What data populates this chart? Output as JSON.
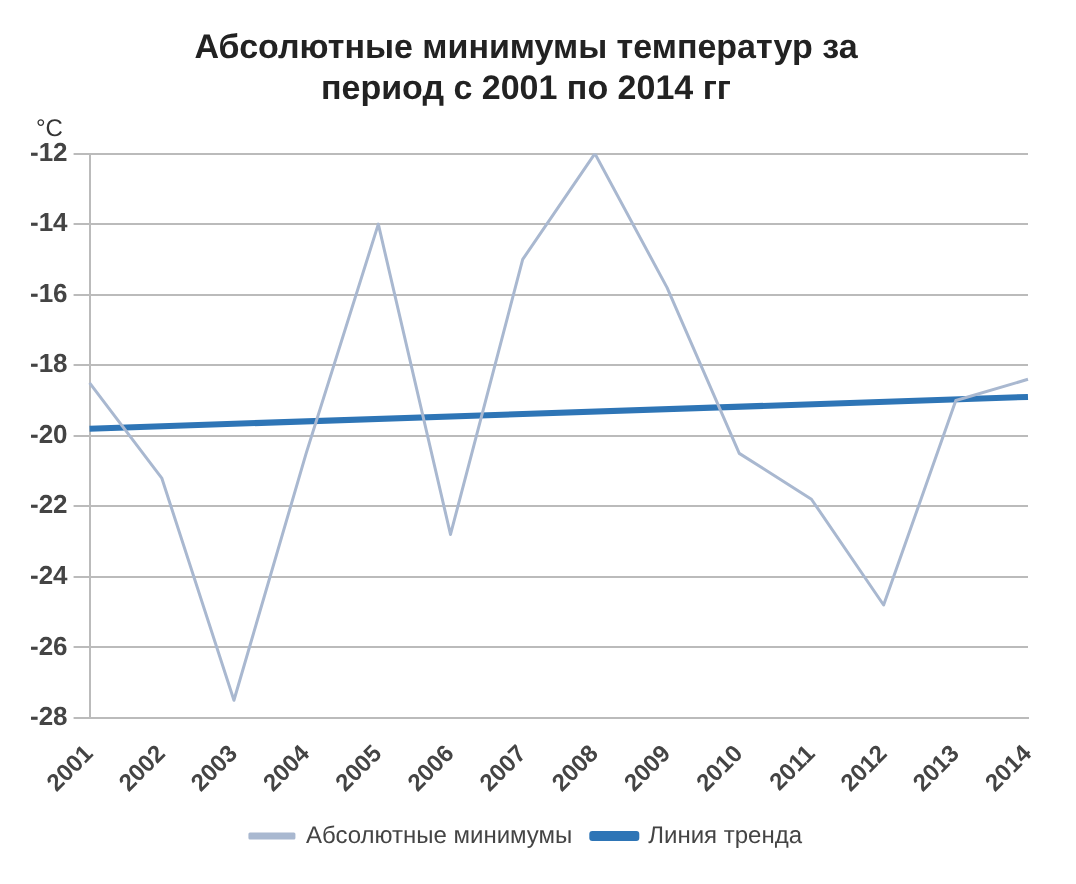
{
  "chart_data": {
    "type": "line",
    "title": [
      "Абсолютные минимумы температур за",
      "период с 2001 по 2014 гг"
    ],
    "ylabel": "°C",
    "categories": [
      "2001",
      "2002",
      "2003",
      "2004",
      "2005",
      "2006",
      "2007",
      "2008",
      "2009",
      "2010",
      "2011",
      "2012",
      "2013",
      "2014"
    ],
    "series": [
      {
        "name": "Абсолютные минимумы",
        "color": "#a9b8d0",
        "values": [
          -18.5,
          -21.2,
          -27.5,
          -20.5,
          -14,
          -22.8,
          -15,
          -12,
          -15.8,
          -20.5,
          -21.8,
          -24.8,
          -19,
          -18.4
        ]
      },
      {
        "name": "Линия тренда",
        "color": "#2e75b6",
        "values": [
          -19.8,
          null,
          null,
          null,
          null,
          null,
          null,
          null,
          null,
          null,
          null,
          null,
          null,
          -18.9
        ]
      }
    ],
    "ylim": [
      -28,
      -12
    ],
    "yticks": [
      -28,
      -26,
      -24,
      -22,
      -20,
      -18,
      -16,
      -14,
      -12
    ],
    "grid": "y",
    "legend": "bottom",
    "marker": "none",
    "line_style": "solid"
  }
}
